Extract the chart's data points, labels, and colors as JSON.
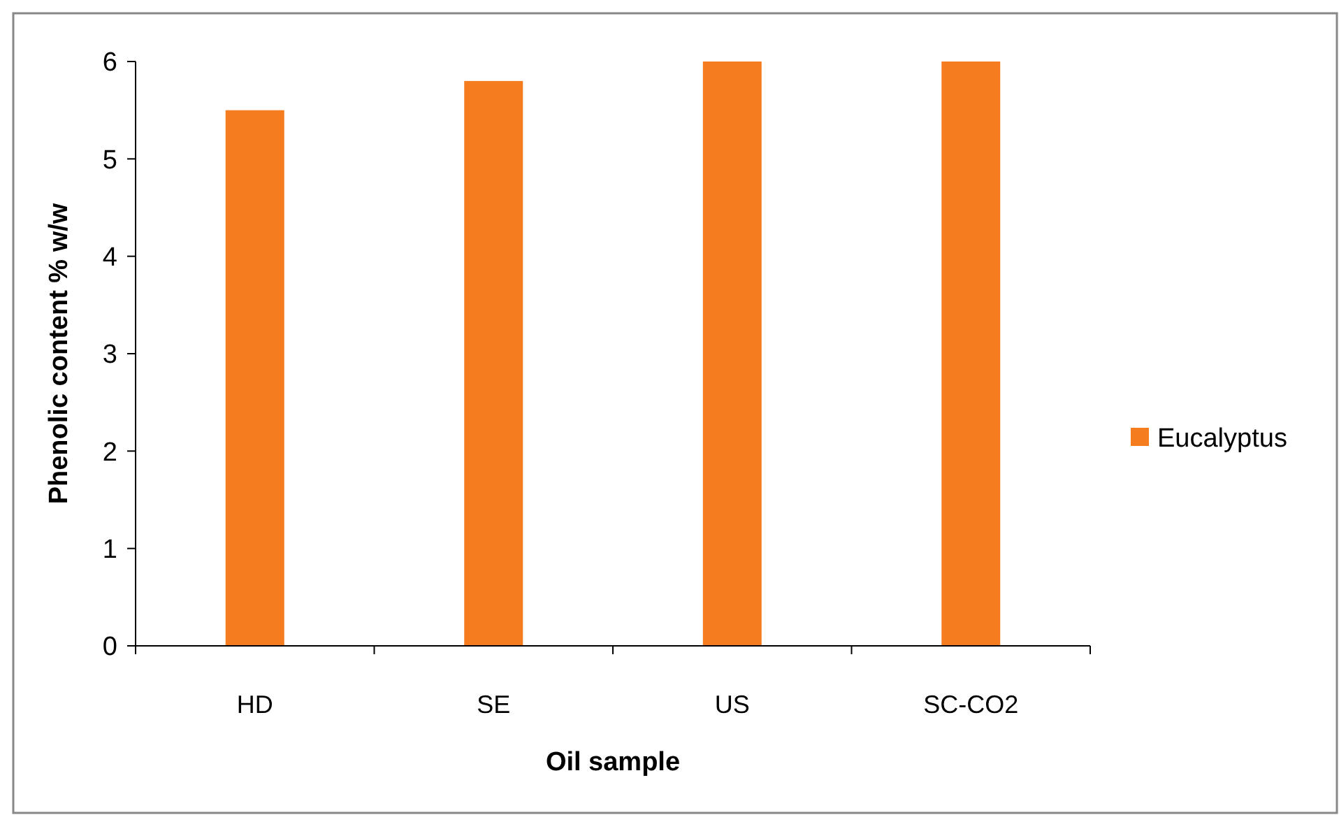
{
  "chart_data": {
    "type": "bar",
    "xlabel": "Oil sample",
    "ylabel": "Phenolic content % w/w",
    "categories": [
      "HD",
      "SE",
      "US",
      "SC-CO2"
    ],
    "series": [
      {
        "name": "Eucalyptus",
        "color": "#f57c1f",
        "values": [
          5.5,
          5.8,
          6.0,
          6.0
        ]
      }
    ],
    "ylim": [
      0,
      6
    ],
    "yticks": [
      0,
      1,
      2,
      3,
      4,
      5,
      6
    ],
    "grid": false,
    "legend": "right"
  }
}
